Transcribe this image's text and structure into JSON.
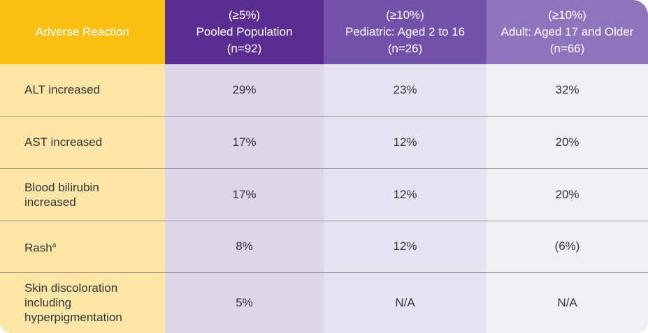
{
  "table": {
    "header": [
      [
        "Adverse Reaction"
      ],
      [
        "(≥5%)",
        "Pooled Population",
        "(n=92)"
      ],
      [
        "(≥10%)",
        "Pediatric: Aged 2 to 16",
        "(n=26)"
      ],
      [
        "(≥10%)",
        "Adult: Aged 17 and Older",
        "(n=66)"
      ]
    ],
    "rows": [
      {
        "label": "ALT increased",
        "values": [
          "29%",
          "23%",
          "32%"
        ]
      },
      {
        "label": "AST increased",
        "values": [
          "17%",
          "12%",
          "20%"
        ]
      },
      {
        "label": "Blood bilirubin increased",
        "values": [
          "17%",
          "12%",
          "20%"
        ]
      },
      {
        "label": "Rash",
        "sup": "a",
        "values": [
          "8%",
          "12%",
          "(6%)"
        ]
      },
      {
        "label": "Skin discoloration including hyperpigmentation",
        "values": [
          "5%",
          "N/A",
          "N/A"
        ]
      }
    ]
  }
}
